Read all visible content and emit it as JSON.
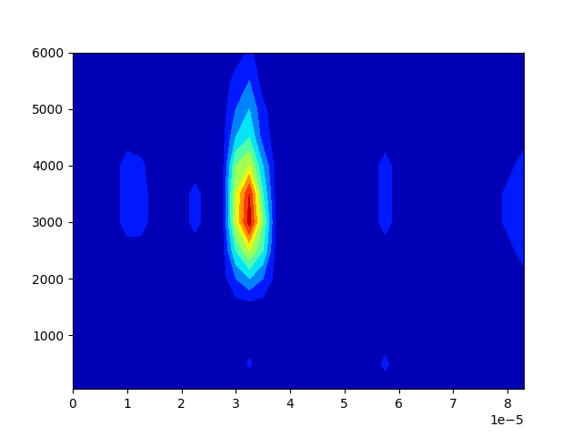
{
  "chart_data": {
    "type": "contour",
    "color": "jet",
    "x": [
      0.0,
      2.5e-06,
      5e-06,
      7.5e-06,
      1e-05,
      1.25e-05,
      1.5e-05,
      1.75e-05,
      2e-05,
      2.25e-05,
      2.5e-05,
      2.75e-05,
      3e-05,
      3.25e-05,
      3.5e-05,
      3.75e-05,
      4e-05,
      4.25e-05,
      4.5e-05,
      4.75e-05,
      5e-05,
      5.25e-05,
      5.5e-05,
      5.75e-05,
      6e-05,
      6.25e-05,
      6.5e-05,
      6.75e-05,
      7e-05,
      7.25e-05,
      7.5e-05,
      7.75e-05,
      8e-05,
      8.3e-05
    ],
    "y": [
      50,
      500,
      1000,
      1500,
      2000,
      2500,
      3000,
      3500,
      4000,
      4500,
      5000,
      5500,
      6000
    ],
    "levels": [
      0,
      1,
      2,
      3,
      4,
      5,
      6,
      7,
      8,
      9,
      10
    ],
    "z": [
      [
        0.5,
        0.5,
        0.5,
        0.5,
        0.5,
        0.5,
        0.5,
        0.5,
        0.5,
        0.5,
        0.5,
        0.5,
        0.5,
        0.5,
        0.5,
        0.5,
        0.5,
        0.5,
        0.5,
        0.5,
        0.5,
        0.5,
        0.5,
        0.5,
        0.5,
        0.5,
        0.5,
        0.5,
        0.5,
        0.5,
        0.5,
        0.5,
        0.5,
        0.5
      ],
      [
        0.5,
        0.5,
        0.5,
        0.5,
        0.5,
        0.5,
        0.5,
        0.5,
        0.5,
        0.5,
        0.5,
        0.5,
        0.5,
        1.1,
        0.5,
        0.5,
        0.5,
        0.5,
        0.5,
        0.5,
        0.5,
        0.5,
        0.5,
        1.2,
        0.5,
        0.5,
        0.5,
        0.5,
        0.5,
        0.5,
        0.5,
        0.5,
        0.5,
        0.5
      ],
      [
        0.5,
        0.5,
        0.5,
        0.5,
        0.5,
        0.5,
        0.5,
        0.5,
        0.5,
        0.5,
        0.5,
        0.5,
        0.5,
        0.5,
        0.5,
        0.5,
        0.5,
        0.5,
        0.5,
        0.5,
        0.5,
        0.5,
        0.5,
        0.5,
        0.5,
        0.5,
        0.5,
        0.5,
        0.5,
        0.5,
        0.5,
        0.5,
        0.5,
        0.5
      ],
      [
        0.5,
        0.5,
        0.5,
        0.5,
        0.5,
        0.5,
        0.5,
        0.5,
        0.5,
        0.5,
        0.5,
        0.5,
        0.5,
        0.5,
        0.5,
        0.5,
        0.5,
        0.5,
        0.5,
        0.5,
        0.5,
        0.5,
        0.5,
        0.5,
        0.5,
        0.5,
        0.5,
        0.5,
        0.5,
        0.5,
        0.5,
        0.5,
        0.5,
        0.5
      ],
      [
        0.5,
        0.5,
        0.5,
        0.5,
        0.5,
        0.5,
        0.5,
        0.5,
        0.5,
        0.5,
        0.5,
        0.5,
        2,
        3,
        2,
        0.5,
        0.5,
        0.5,
        0.5,
        0.5,
        0.5,
        0.5,
        0.5,
        0.5,
        0.5,
        0.5,
        0.5,
        0.5,
        0.5,
        0.5,
        0.5,
        0.5,
        0.5,
        0.5
      ],
      [
        0.5,
        0.5,
        0.5,
        0.5,
        0.5,
        0.5,
        0.5,
        0.5,
        0.5,
        0.5,
        0.5,
        0.5,
        4,
        6,
        4,
        0.5,
        0.5,
        0.5,
        0.5,
        0.5,
        0.5,
        0.5,
        0.5,
        0.5,
        0.5,
        0.5,
        0.5,
        0.5,
        0.5,
        0.5,
        0.5,
        0.5,
        0.5,
        1.6
      ],
      [
        0.5,
        0.5,
        0.5,
        0.5,
        1.5,
        1.5,
        0.5,
        0.5,
        0.5,
        1.3,
        0.5,
        0.5,
        6,
        9.5,
        5,
        0.5,
        0.5,
        0.5,
        0.5,
        0.5,
        0.5,
        0.5,
        0.5,
        1.4,
        0.5,
        0.5,
        0.5,
        0.5,
        0.5,
        0.5,
        0.5,
        0.5,
        1.3,
        1.6
      ],
      [
        0.5,
        0.5,
        0.5,
        0.5,
        1.5,
        1.5,
        0.5,
        0.5,
        0.5,
        1.3,
        0.5,
        0.5,
        6,
        9,
        4,
        0.5,
        0.5,
        0.5,
        0.5,
        0.5,
        0.5,
        0.5,
        0.5,
        1.4,
        0.5,
        0.5,
        0.5,
        0.5,
        0.5,
        0.5,
        0.5,
        0.5,
        1.3,
        1.6
      ],
      [
        0.5,
        0.5,
        0.5,
        0.5,
        1.5,
        1.2,
        0.5,
        0.5,
        0.5,
        0.5,
        0.5,
        0.5,
        5,
        6,
        3,
        0.5,
        0.5,
        0.5,
        0.5,
        0.5,
        0.5,
        0.5,
        0.5,
        1.4,
        0.5,
        0.5,
        0.5,
        0.5,
        0.5,
        0.5,
        0.5,
        0.5,
        0.5,
        1.6
      ],
      [
        0.5,
        0.5,
        0.5,
        0.5,
        0.5,
        0.5,
        0.5,
        0.5,
        0.5,
        0.5,
        0.5,
        0.5,
        3,
        4,
        1.5,
        0.5,
        0.5,
        0.5,
        0.5,
        0.5,
        0.5,
        0.5,
        0.5,
        0.5,
        0.5,
        0.5,
        0.5,
        0.5,
        0.5,
        0.5,
        0.5,
        0.5,
        0.5,
        0.5
      ],
      [
        0.5,
        0.5,
        0.5,
        0.5,
        0.5,
        0.5,
        0.5,
        0.5,
        0.5,
        0.5,
        0.5,
        0.5,
        2,
        3,
        1.2,
        0.5,
        0.5,
        0.5,
        0.5,
        0.5,
        0.5,
        0.5,
        0.5,
        0.5,
        0.5,
        0.5,
        0.5,
        0.5,
        0.5,
        0.5,
        0.5,
        0.5,
        0.5,
        0.5
      ],
      [
        0.5,
        0.5,
        0.5,
        0.5,
        0.5,
        0.5,
        0.5,
        0.5,
        0.5,
        0.5,
        0.5,
        0.5,
        1.3,
        2,
        0.5,
        0.5,
        0.5,
        0.5,
        0.5,
        0.5,
        0.5,
        0.5,
        0.5,
        0.5,
        0.5,
        0.5,
        0.5,
        0.5,
        0.5,
        0.5,
        0.5,
        0.5,
        0.5,
        0.5
      ],
      [
        0.5,
        0.5,
        0.5,
        0.5,
        0.5,
        0.5,
        0.5,
        0.5,
        0.5,
        0.5,
        0.5,
        0.5,
        0.5,
        1.2,
        0.5,
        0.5,
        0.5,
        0.5,
        0.5,
        0.5,
        0.5,
        0.5,
        0.5,
        0.5,
        0.5,
        0.5,
        0.5,
        0.5,
        0.5,
        0.5,
        0.5,
        0.5,
        0.5,
        0.5
      ]
    ],
    "xlim": [
      0.0,
      8.3e-05
    ],
    "ylim": [
      50,
      6000
    ],
    "xticks": [
      0,
      {
        "value": 1e-05,
        "label": "1"
      },
      {
        "value": 2e-05,
        "label": "2"
      },
      {
        "value": 3e-05,
        "label": "3"
      },
      {
        "value": 4e-05,
        "label": "4"
      },
      {
        "value": 5e-05,
        "label": "5"
      },
      {
        "value": 6e-05,
        "label": "6"
      },
      {
        "value": 7e-05,
        "label": "7"
      },
      {
        "value": 8e-05,
        "label": "8"
      }
    ],
    "yticks": [
      1000,
      2000,
      3000,
      4000,
      5000,
      6000
    ],
    "x_offset_text": "1e−5"
  }
}
